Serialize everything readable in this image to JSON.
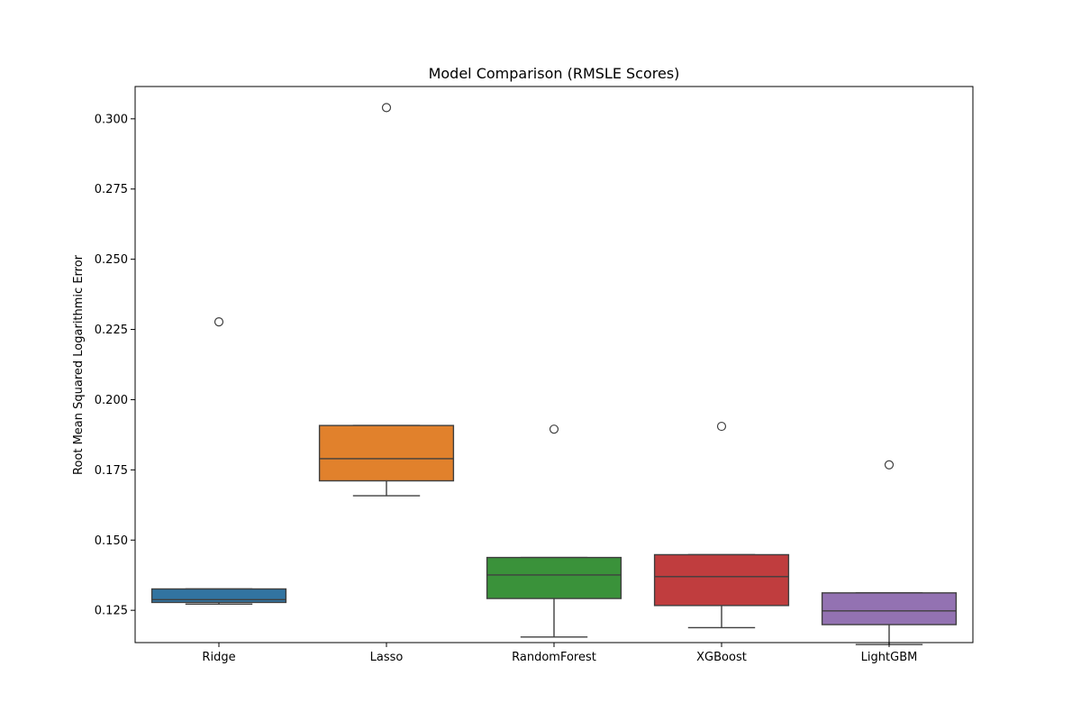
{
  "chart_data": {
    "type": "box",
    "title": "Model Comparison (RMSLE Scores)",
    "xlabel": "",
    "ylabel": "Root Mean Squared Logarithmic Error",
    "ylim": [
      0.1135,
      0.3115
    ],
    "yticks": [
      0.125,
      0.15,
      0.175,
      0.2,
      0.225,
      0.25,
      0.275,
      0.3
    ],
    "ytick_labels": [
      "0.125",
      "0.150",
      "0.175",
      "0.200",
      "0.225",
      "0.250",
      "0.275",
      "0.300"
    ],
    "grid": false,
    "categories": [
      "Ridge",
      "Lasso",
      "RandomForest",
      "XGBoost",
      "LightGBM"
    ],
    "boxes": [
      {
        "whisker_low": 0.1272,
        "q1": 0.1278,
        "median": 0.1288,
        "q3": 0.1326,
        "whisker_high": 0.1326,
        "outliers": [
          0.2277
        ],
        "color": "#3274a1"
      },
      {
        "whisker_low": 0.1658,
        "q1": 0.1711,
        "median": 0.179,
        "q3": 0.1908,
        "whisker_high": 0.1908,
        "outliers": [
          0.304
        ],
        "color": "#e1812c"
      },
      {
        "whisker_low": 0.1155,
        "q1": 0.1292,
        "median": 0.1376,
        "q3": 0.1438,
        "whisker_high": 0.1438,
        "outliers": [
          0.1895
        ],
        "color": "#3a923a"
      },
      {
        "whisker_low": 0.1188,
        "q1": 0.1267,
        "median": 0.137,
        "q3": 0.1448,
        "whisker_high": 0.1448,
        "outliers": [
          0.1905
        ],
        "color": "#c03d3e"
      },
      {
        "whisker_low": 0.1128,
        "q1": 0.1199,
        "median": 0.1248,
        "q3": 0.1312,
        "whisker_high": 0.1312,
        "outliers": [
          0.1768
        ],
        "color": "#9372b2"
      }
    ]
  }
}
